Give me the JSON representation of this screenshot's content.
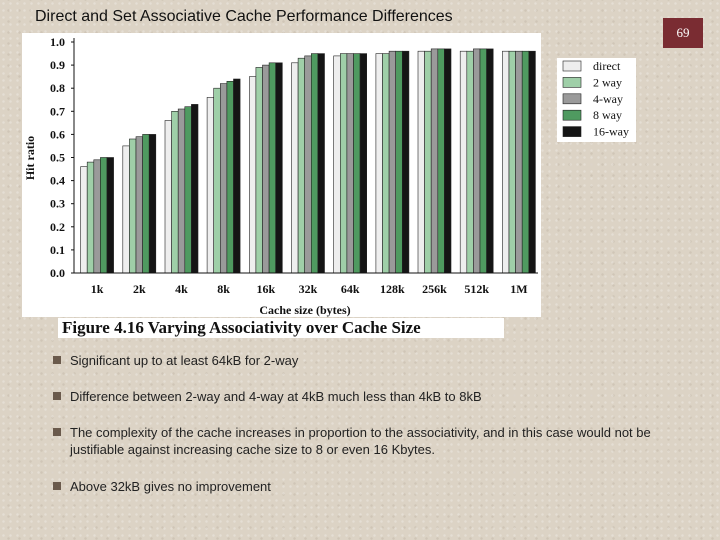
{
  "slide": {
    "title": "Direct and Set Associative Cache  Performance Differences",
    "page_number": "69"
  },
  "figure": {
    "caption": "Figure 4.16  Varying Associativity over Cache Size"
  },
  "bullets": [
    "Significant up to at least 64kB for 2-way",
    "Difference between 2-way and 4-way at 4kB much less than 4kB to 8kB",
    "The complexity of the cache increases in proportion to the associativity, and in this case would not be justifiable against increasing cache size to 8 or even 16 Kbytes.",
    "Above 32kB gives no improvement"
  ],
  "colors": {
    "direct": "#eeeeee",
    "2 way": "#9fcfa8",
    "4-way": "#9a9a9a",
    "8 way": "#4f9a60",
    "16-way": "#151515",
    "page_number_bg": "#7a2c32"
  },
  "chart_data": {
    "type": "bar",
    "xlabel": "Cache size (bytes)",
    "ylabel": "Hit ratio",
    "ylim": [
      0,
      1.0
    ],
    "yticks": [
      "0.0",
      "0.1",
      "0.2",
      "0.3",
      "0.4",
      "0.5",
      "0.6",
      "0.7",
      "0.8",
      "0.9",
      "1.0"
    ],
    "categories": [
      "1k",
      "2k",
      "4k",
      "8k",
      "16k",
      "32k",
      "64k",
      "128k",
      "256k",
      "512k",
      "1M"
    ],
    "series": [
      {
        "name": "direct",
        "values": [
          0.46,
          0.55,
          0.66,
          0.76,
          0.85,
          0.91,
          0.94,
          0.95,
          0.96,
          0.96,
          0.96
        ]
      },
      {
        "name": "2 way",
        "values": [
          0.48,
          0.58,
          0.7,
          0.8,
          0.89,
          0.93,
          0.95,
          0.95,
          0.96,
          0.96,
          0.96
        ]
      },
      {
        "name": "4-way",
        "values": [
          0.49,
          0.59,
          0.71,
          0.82,
          0.9,
          0.94,
          0.95,
          0.96,
          0.97,
          0.97,
          0.96
        ]
      },
      {
        "name": "8 way",
        "values": [
          0.5,
          0.6,
          0.72,
          0.83,
          0.91,
          0.95,
          0.95,
          0.96,
          0.97,
          0.97,
          0.96
        ]
      },
      {
        "name": "16-way",
        "values": [
          0.5,
          0.6,
          0.73,
          0.84,
          0.91,
          0.95,
          0.95,
          0.96,
          0.97,
          0.97,
          0.96
        ]
      }
    ],
    "grid": false,
    "legend": "top-right"
  }
}
